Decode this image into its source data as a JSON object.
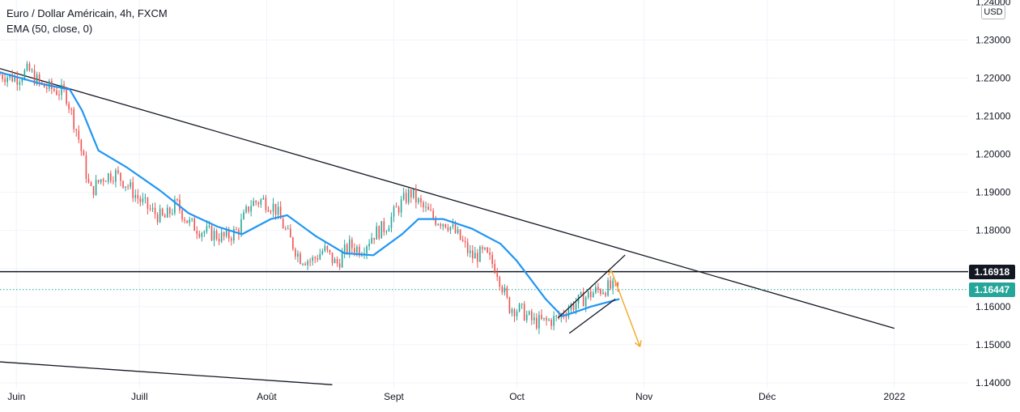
{
  "legend": {
    "title": "Euro / Dollar Américain, 4h, FXCM",
    "indicator": "EMA (50, close, 0)"
  },
  "currency_badge": "USD",
  "price_tags": {
    "horizontal_level": "1.16918",
    "last_price": "1.16447"
  },
  "colors": {
    "bull": "#26a69a",
    "bear": "#ef5350",
    "ema": "#2196f3",
    "trendline": "#131722",
    "projection": "#f5a623",
    "grid": "#f0f3fa",
    "last_price_line": "#26a69a"
  },
  "chart_data": {
    "type": "candlestick",
    "title": "Euro / Dollar Américain, 4h, FXCM",
    "xlabel": "",
    "ylabel": "",
    "x_tick_labels": [
      "Juin",
      "Juill",
      "Août",
      "Sept",
      "Oct",
      "Nov",
      "Déc",
      "2022"
    ],
    "x_ticks_x": [
      "2021-06-01",
      "2021-07-01",
      "2021-08-01",
      "2021-09-01",
      "2021-10-01",
      "2021-11-01",
      "2021-12-01",
      "2022-01-01"
    ],
    "y_tick_labels": [
      "1.14000",
      "1.15000",
      "1.16000",
      "1.17000",
      "1.18000",
      "1.19000",
      "1.20000",
      "1.21000",
      "1.22000",
      "1.23000",
      "1.24000"
    ],
    "ylim": [
      1.1385,
      1.2405
    ],
    "xlim": [
      "2021-05-28",
      "2022-01-19"
    ],
    "grid": true,
    "series": [
      {
        "name": "EURUSD",
        "kind": "candles",
        "x": [
          "2021-05-28",
          "2021-06-01",
          "2021-06-04",
          "2021-06-07",
          "2021-06-10",
          "2021-06-13",
          "2021-06-16",
          "2021-06-19",
          "2021-06-22",
          "2021-06-25",
          "2021-06-28",
          "2021-07-01",
          "2021-07-04",
          "2021-07-07",
          "2021-07-10",
          "2021-07-13",
          "2021-07-16",
          "2021-07-19",
          "2021-07-22",
          "2021-07-25",
          "2021-07-28",
          "2021-07-31",
          "2021-08-03",
          "2021-08-06",
          "2021-08-09",
          "2021-08-12",
          "2021-08-15",
          "2021-08-18",
          "2021-08-21",
          "2021-08-24",
          "2021-08-27",
          "2021-08-30",
          "2021-09-02",
          "2021-09-05",
          "2021-09-08",
          "2021-09-11",
          "2021-09-14",
          "2021-09-17",
          "2021-09-20",
          "2021-09-23",
          "2021-09-26",
          "2021-09-29",
          "2021-10-02",
          "2021-10-05",
          "2021-10-08",
          "2021-10-11",
          "2021-10-14",
          "2021-10-17",
          "2021-10-20",
          "2021-10-23",
          "2021-10-26"
        ],
        "close": [
          1.221,
          1.22,
          1.222,
          1.218,
          1.217,
          1.216,
          1.205,
          1.19,
          1.194,
          1.195,
          1.192,
          1.188,
          1.185,
          1.183,
          1.187,
          1.182,
          1.18,
          1.179,
          1.178,
          1.18,
          1.187,
          1.188,
          1.186,
          1.179,
          1.173,
          1.172,
          1.175,
          1.171,
          1.176,
          1.175,
          1.179,
          1.181,
          1.186,
          1.19,
          1.186,
          1.183,
          1.182,
          1.178,
          1.173,
          1.174,
          1.17,
          1.16,
          1.159,
          1.156,
          1.156,
          1.157,
          1.16,
          1.162,
          1.164,
          1.165,
          1.1645
        ]
      },
      {
        "name": "EMA (50, close, 0)",
        "kind": "line",
        "x": [
          "2021-05-28",
          "2021-06-07",
          "2021-06-14",
          "2021-06-17",
          "2021-06-21",
          "2021-06-28",
          "2021-07-06",
          "2021-07-13",
          "2021-07-20",
          "2021-07-26",
          "2021-08-02",
          "2021-08-06",
          "2021-08-13",
          "2021-08-20",
          "2021-08-27",
          "2021-09-03",
          "2021-09-07",
          "2021-09-13",
          "2021-09-20",
          "2021-09-27",
          "2021-10-01",
          "2021-10-08",
          "2021-10-12",
          "2021-10-15",
          "2021-10-19",
          "2021-10-26"
        ],
        "y": [
          1.2215,
          1.2185,
          1.217,
          1.2115,
          1.201,
          1.1965,
          1.1905,
          1.1845,
          1.181,
          1.179,
          1.183,
          1.184,
          1.1785,
          1.174,
          1.1735,
          1.179,
          1.183,
          1.183,
          1.1805,
          1.1765,
          1.172,
          1.162,
          1.1575,
          1.1585,
          1.16,
          1.162
        ]
      },
      {
        "name": "",
        "kind": "trendline",
        "x": [
          "2021-05-28",
          "2022-01-01"
        ],
        "y": [
          1.2225,
          1.1543
        ]
      },
      {
        "name": "",
        "kind": "trendline",
        "x": [
          "2021-05-28",
          "2021-08-17"
        ],
        "y": [
          1.1455,
          1.1395
        ]
      },
      {
        "name": "",
        "kind": "hline",
        "y": 1.16918
      },
      {
        "name": "",
        "kind": "hline_dotted",
        "y": 1.16447
      },
      {
        "name": "",
        "kind": "channel",
        "x": [
          "2021-10-11",
          "2021-10-25"
        ],
        "upper": [
          1.157,
          1.171
        ],
        "lower": [
          1.153,
          1.162
        ]
      },
      {
        "name": "",
        "kind": "projection_arrow",
        "x": [
          "2021-10-24",
          "2021-10-31"
        ],
        "y": [
          1.1695,
          1.1495
        ]
      }
    ]
  }
}
